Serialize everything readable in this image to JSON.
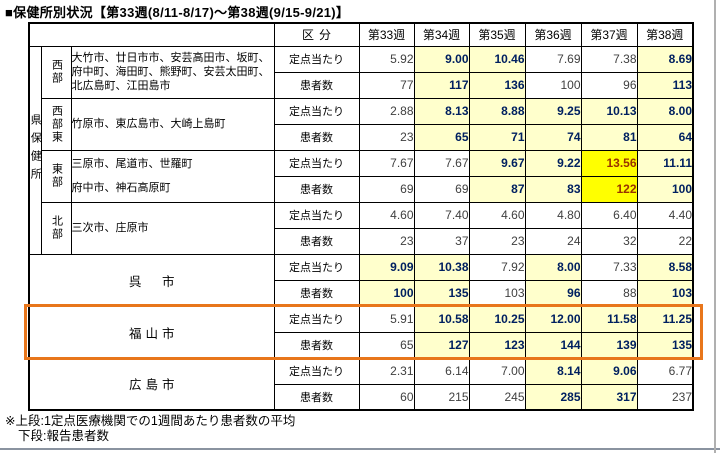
{
  "title": "■保健所別状況【第33週(8/11-8/17)～第38週(9/15-9/21)】",
  "table": {
    "kubun_header": "区分",
    "week_headers": [
      "第33週",
      "第34週",
      "第35週",
      "第36週",
      "第37週",
      "第38週"
    ],
    "left_header": "県保健所",
    "row_labels": {
      "teiten": "定点当たり",
      "kanja": "患者数"
    },
    "groups": [
      {
        "region": "西部",
        "municipalities": "大竹市、廿日市市、安芸高田市、坂町、府中町、海田町、熊野町、安芸太田町、北広島町、江田島市"
      },
      {
        "region": "西部東",
        "municipalities": "竹原市、東広島市、大崎上島町"
      },
      {
        "region": "東部",
        "municipalities": "三原市、尾道市、世羅町\n府中市、神石高原町"
      },
      {
        "region": "北部",
        "municipalities": "三次市、庄原市"
      }
    ],
    "cities": [
      {
        "name": "呉　市",
        "highlighted": false
      },
      {
        "name": "福山市",
        "highlighted": true
      },
      {
        "name": "広島市",
        "highlighted": false
      }
    ],
    "rows": [
      {
        "group": "西部",
        "label": "teiten",
        "cells": [
          {
            "v": "5.92",
            "hl": "none"
          },
          {
            "v": "9.00",
            "hl": "pale"
          },
          {
            "v": "10.46",
            "hl": "pale"
          },
          {
            "v": "7.69",
            "hl": "none"
          },
          {
            "v": "7.38",
            "hl": "none"
          },
          {
            "v": "8.69",
            "hl": "pale"
          }
        ]
      },
      {
        "group": "西部",
        "label": "kanja",
        "cells": [
          {
            "v": "77",
            "hl": "none"
          },
          {
            "v": "117",
            "hl": "pale"
          },
          {
            "v": "136",
            "hl": "pale"
          },
          {
            "v": "100",
            "hl": "none"
          },
          {
            "v": "96",
            "hl": "none"
          },
          {
            "v": "113",
            "hl": "pale"
          }
        ]
      },
      {
        "group": "西部東",
        "label": "teiten",
        "cells": [
          {
            "v": "2.88",
            "hl": "none"
          },
          {
            "v": "8.13",
            "hl": "pale"
          },
          {
            "v": "8.88",
            "hl": "pale"
          },
          {
            "v": "9.25",
            "hl": "pale"
          },
          {
            "v": "10.13",
            "hl": "pale"
          },
          {
            "v": "8.00",
            "hl": "pale"
          }
        ]
      },
      {
        "group": "西部東",
        "label": "kanja",
        "cells": [
          {
            "v": "23",
            "hl": "none"
          },
          {
            "v": "65",
            "hl": "pale"
          },
          {
            "v": "71",
            "hl": "pale"
          },
          {
            "v": "74",
            "hl": "pale"
          },
          {
            "v": "81",
            "hl": "pale"
          },
          {
            "v": "64",
            "hl": "pale"
          }
        ]
      },
      {
        "group": "東部",
        "label": "teiten",
        "cells": [
          {
            "v": "7.67",
            "hl": "none"
          },
          {
            "v": "7.67",
            "hl": "none"
          },
          {
            "v": "9.67",
            "hl": "pale"
          },
          {
            "v": "9.22",
            "hl": "pale"
          },
          {
            "v": "13.56",
            "hl": "bright"
          },
          {
            "v": "11.11",
            "hl": "pale"
          }
        ]
      },
      {
        "group": "東部",
        "label": "kanja",
        "cells": [
          {
            "v": "69",
            "hl": "none"
          },
          {
            "v": "69",
            "hl": "none"
          },
          {
            "v": "87",
            "hl": "pale"
          },
          {
            "v": "83",
            "hl": "pale"
          },
          {
            "v": "122",
            "hl": "bright"
          },
          {
            "v": "100",
            "hl": "pale"
          }
        ]
      },
      {
        "group": "北部",
        "label": "teiten",
        "cells": [
          {
            "v": "4.60",
            "hl": "none"
          },
          {
            "v": "7.40",
            "hl": "none"
          },
          {
            "v": "4.60",
            "hl": "none"
          },
          {
            "v": "4.80",
            "hl": "none"
          },
          {
            "v": "6.40",
            "hl": "none"
          },
          {
            "v": "4.40",
            "hl": "none"
          }
        ]
      },
      {
        "group": "北部",
        "label": "kanja",
        "cells": [
          {
            "v": "23",
            "hl": "none"
          },
          {
            "v": "37",
            "hl": "none"
          },
          {
            "v": "23",
            "hl": "none"
          },
          {
            "v": "24",
            "hl": "none"
          },
          {
            "v": "32",
            "hl": "none"
          },
          {
            "v": "22",
            "hl": "none"
          }
        ]
      },
      {
        "group": "呉市",
        "label": "teiten",
        "cells": [
          {
            "v": "9.09",
            "hl": "pale"
          },
          {
            "v": "10.38",
            "hl": "pale"
          },
          {
            "v": "7.92",
            "hl": "none"
          },
          {
            "v": "8.00",
            "hl": "pale"
          },
          {
            "v": "7.33",
            "hl": "none"
          },
          {
            "v": "8.58",
            "hl": "pale"
          }
        ]
      },
      {
        "group": "呉市",
        "label": "kanja",
        "cells": [
          {
            "v": "100",
            "hl": "pale"
          },
          {
            "v": "135",
            "hl": "pale"
          },
          {
            "v": "103",
            "hl": "none"
          },
          {
            "v": "96",
            "hl": "pale"
          },
          {
            "v": "88",
            "hl": "none"
          },
          {
            "v": "103",
            "hl": "pale"
          }
        ]
      },
      {
        "group": "福山市",
        "label": "teiten",
        "cells": [
          {
            "v": "5.91",
            "hl": "none"
          },
          {
            "v": "10.58",
            "hl": "pale"
          },
          {
            "v": "10.25",
            "hl": "pale"
          },
          {
            "v": "12.00",
            "hl": "pale"
          },
          {
            "v": "11.58",
            "hl": "pale"
          },
          {
            "v": "11.25",
            "hl": "pale"
          }
        ]
      },
      {
        "group": "福山市",
        "label": "kanja",
        "cells": [
          {
            "v": "65",
            "hl": "none"
          },
          {
            "v": "127",
            "hl": "pale"
          },
          {
            "v": "123",
            "hl": "pale"
          },
          {
            "v": "144",
            "hl": "pale"
          },
          {
            "v": "139",
            "hl": "pale"
          },
          {
            "v": "135",
            "hl": "pale"
          }
        ]
      },
      {
        "group": "広島市",
        "label": "teiten",
        "cells": [
          {
            "v": "2.31",
            "hl": "none"
          },
          {
            "v": "6.14",
            "hl": "none"
          },
          {
            "v": "7.00",
            "hl": "none"
          },
          {
            "v": "8.14",
            "hl": "pale"
          },
          {
            "v": "9.06",
            "hl": "pale"
          },
          {
            "v": "6.77",
            "hl": "none"
          }
        ]
      },
      {
        "group": "広島市",
        "label": "kanja",
        "cells": [
          {
            "v": "60",
            "hl": "none"
          },
          {
            "v": "215",
            "hl": "none"
          },
          {
            "v": "245",
            "hl": "none"
          },
          {
            "v": "285",
            "hl": "pale"
          },
          {
            "v": "317",
            "hl": "pale"
          },
          {
            "v": "237",
            "hl": "none"
          }
        ]
      }
    ]
  },
  "footnotes": {
    "line1": "※上段:1定点医療機関での1週間あたり患者数の平均",
    "line2": "下段:報告患者数"
  },
  "colors": {
    "pale_highlight": "#FFFFCC",
    "bright_highlight": "#FFFF00",
    "bold_value_text": "#002060",
    "alert_value_text": "#993300",
    "fukuyama_border": "#E8761B",
    "normal_value_text": "#404040"
  }
}
